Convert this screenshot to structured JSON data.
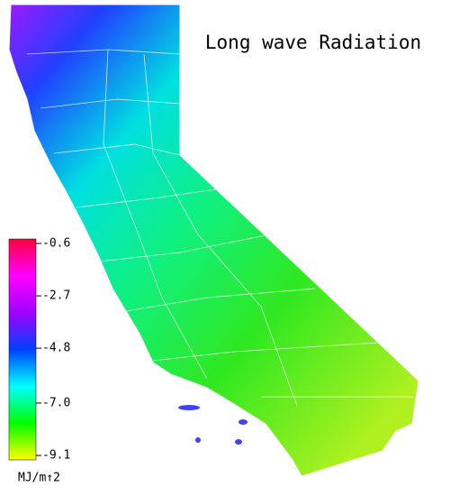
{
  "title": "Long wave Radiation",
  "colorbar": {
    "lim": [
      -9.28,
      -0.42
    ],
    "ticks": [
      -0.6,
      -2.7,
      -4.8,
      {
        "value": -7,
        "label": "-7.0"
      },
      -9.1
    ],
    "colors": [
      "#ffff00",
      "#00ff00",
      "#00ffff",
      "#0040ff",
      "#a000ff",
      "#ff00ff",
      "#ff0040"
    ],
    "unit": "MJ/m↑2"
  }
}
